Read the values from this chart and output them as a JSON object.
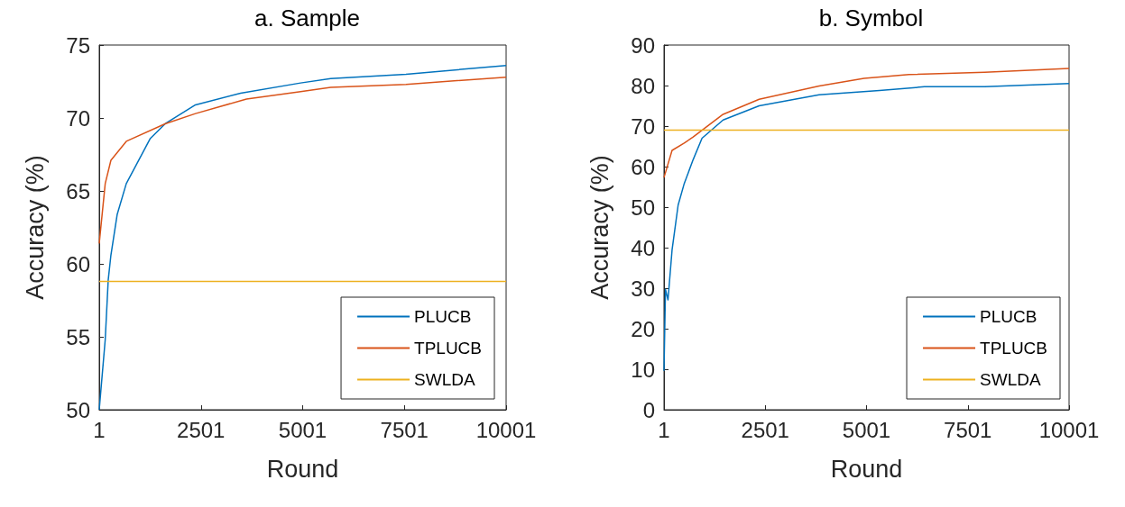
{
  "chart_data": [
    {
      "type": "line",
      "title": "a. Sample",
      "xlabel": "Round",
      "ylabel": "Accuracy (%)",
      "xlim": [
        1,
        10001
      ],
      "xticks": [
        1,
        2501,
        5001,
        7501,
        10001
      ],
      "ylim": [
        50,
        75
      ],
      "yticks": [
        50,
        55,
        60,
        65,
        70,
        75
      ],
      "grid": false,
      "legend": "bottom right",
      "series": [
        {
          "name": "PLUCB",
          "color": "#0072bd",
          "x": [
            1,
            148,
            222,
            288,
            443,
            666,
            1257,
            1620,
            2366,
            3475,
            4950,
            5690,
            7540,
            10001
          ],
          "values": [
            50,
            54.8,
            58.9,
            60.6,
            63.4,
            65.5,
            68.6,
            69.6,
            70.9,
            71.7,
            72.4,
            72.7,
            73.0,
            73.6
          ]
        },
        {
          "name": "TPLUCB",
          "color": "#d95319",
          "x": [
            1,
            148,
            288,
            666,
            1620,
            2366,
            3620,
            4950,
            5690,
            7540,
            10001
          ],
          "values": [
            61.4,
            65.5,
            67.1,
            68.4,
            69.6,
            70.3,
            71.3,
            71.8,
            72.1,
            72.3,
            72.8
          ]
        },
        {
          "name": "SWLDA",
          "color": "#edb120",
          "x": [
            1,
            10001
          ],
          "values": [
            58.8,
            58.8
          ]
        }
      ]
    },
    {
      "type": "line",
      "title": "b. Symbol",
      "xlabel": "Round",
      "ylabel": "Accuracy (%)",
      "xlim": [
        1,
        10001
      ],
      "xticks": [
        1,
        2501,
        5001,
        7501,
        10001
      ],
      "ylim": [
        0,
        90
      ],
      "yticks": [
        0,
        10,
        20,
        30,
        40,
        50,
        60,
        70,
        80,
        90
      ],
      "grid": false,
      "legend": "bottom right",
      "series": [
        {
          "name": "PLUCB",
          "color": "#0072bd",
          "x": [
            1,
            38,
            100,
            200,
            350,
            500,
            720,
            940,
            1460,
            2350,
            3830,
            5320,
            6430,
            7920,
            10001
          ],
          "values": [
            9.6,
            29.7,
            27.1,
            39.4,
            50.5,
            55.8,
            61.7,
            67.0,
            71.5,
            75.0,
            77.7,
            78.8,
            79.7,
            79.7,
            80.5
          ]
        },
        {
          "name": "TPLUCB",
          "color": "#d95319",
          "x": [
            1,
            200,
            500,
            720,
            1460,
            2350,
            3830,
            4940,
            6050,
            7920,
            10001
          ],
          "values": [
            57.3,
            64.0,
            65.8,
            67.3,
            72.9,
            76.6,
            79.9,
            81.8,
            82.7,
            83.3,
            84.2
          ]
        },
        {
          "name": "SWLDA",
          "color": "#edb120",
          "x": [
            1,
            10001
          ],
          "values": [
            69.0,
            69.0
          ]
        }
      ]
    }
  ]
}
